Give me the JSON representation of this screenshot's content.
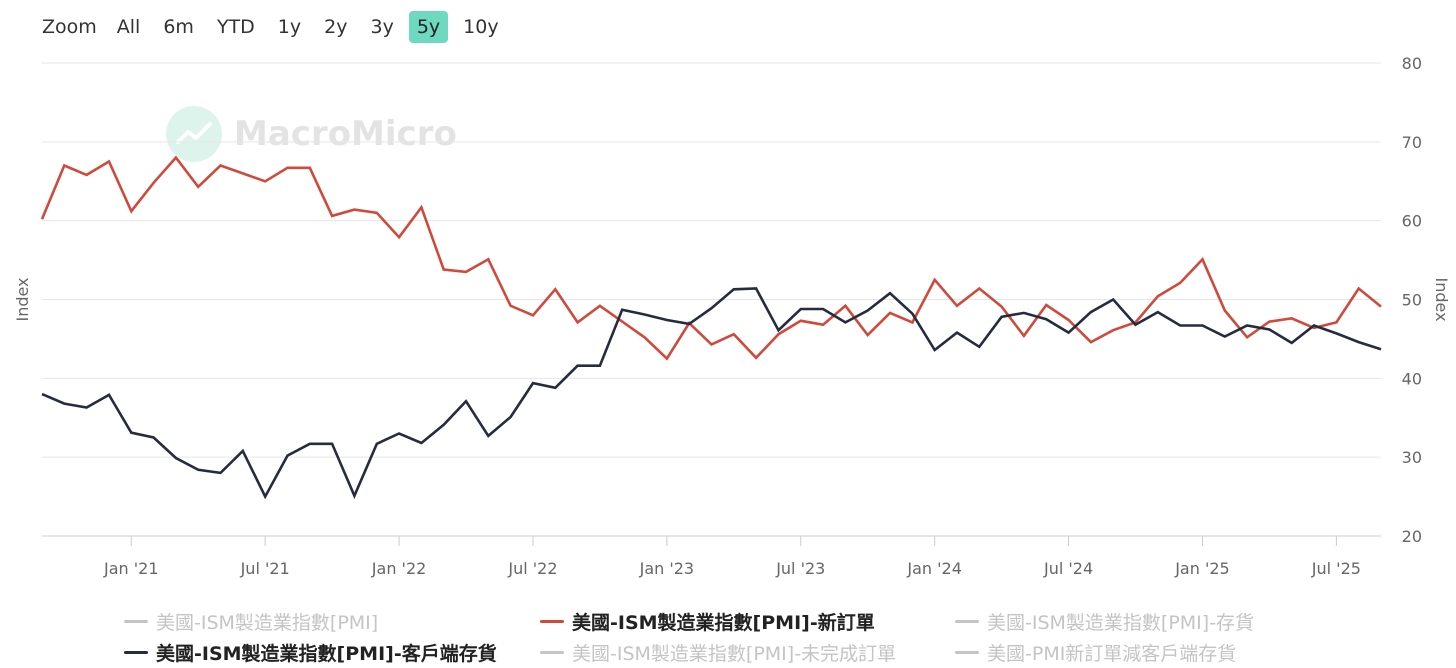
{
  "zoom": {
    "label": "Zoom",
    "buttons": [
      {
        "label": "All",
        "active": false
      },
      {
        "label": "6m",
        "active": false
      },
      {
        "label": "YTD",
        "active": false
      },
      {
        "label": "1y",
        "active": false
      },
      {
        "label": "2y",
        "active": false
      },
      {
        "label": "3y",
        "active": false
      },
      {
        "label": "5y",
        "active": true
      },
      {
        "label": "10y",
        "active": false
      }
    ],
    "active_color": "#6fd9bf"
  },
  "watermark": {
    "text": "MacroMicro",
    "icon": "macromicro-logo-icon"
  },
  "legend": [
    {
      "label": "美國-ISM製造業指數[PMI]",
      "visible": false,
      "color": "#c4c4c4"
    },
    {
      "label": "美國-ISM製造業指數[PMI]-新訂單",
      "visible": true,
      "color": "#d04a3c"
    },
    {
      "label": "美國-ISM製造業指數[PMI]-存貨",
      "visible": false,
      "color": "#c4c4c4"
    },
    {
      "label": "美國-ISM製造業指數[PMI]-客戶端存貨",
      "visible": true,
      "color": "#252c3e"
    },
    {
      "label": "美國-ISM製造業指數[PMI]-未完成訂單",
      "visible": false,
      "color": "#c4c4c4"
    },
    {
      "label": "美國-PMI新訂單減客戶端存貨",
      "visible": false,
      "color": "#c4c4c4"
    }
  ],
  "chart_data": {
    "type": "line",
    "ylabel_left": "Index",
    "ylabel_right": "Index",
    "ylim": [
      20,
      80
    ],
    "yticks": [
      20,
      30,
      40,
      50,
      60,
      70,
      80
    ],
    "x_start": "2020-09",
    "x_ticks": [
      {
        "label": "Jan '21",
        "date": "2021-01"
      },
      {
        "label": "Jul '21",
        "date": "2021-07"
      },
      {
        "label": "Jan '22",
        "date": "2022-01"
      },
      {
        "label": "Jul '22",
        "date": "2022-07"
      },
      {
        "label": "Jan '23",
        "date": "2023-01"
      },
      {
        "label": "Jul '23",
        "date": "2023-07"
      },
      {
        "label": "Jan '24",
        "date": "2024-01"
      },
      {
        "label": "Jul '24",
        "date": "2024-07"
      },
      {
        "label": "Jan '25",
        "date": "2025-01"
      },
      {
        "label": "Jul '25",
        "date": "2025-07"
      }
    ],
    "grid": true,
    "series": [
      {
        "name": "美國-ISM製造業指數[PMI]-新訂單",
        "color": "#d04a3c",
        "values": [
          60.2,
          67.0,
          65.8,
          67.5,
          61.2,
          64.8,
          68.0,
          64.3,
          67.0,
          66.0,
          65.0,
          66.7,
          66.7,
          60.6,
          61.4,
          61.0,
          57.9,
          61.7,
          53.8,
          53.5,
          55.1,
          49.2,
          48.0,
          51.3,
          47.1,
          49.2,
          47.2,
          45.2,
          42.5,
          47.0,
          44.3,
          45.6,
          42.6,
          45.6,
          47.3,
          46.8,
          49.2,
          45.5,
          48.3,
          47.1,
          52.5,
          49.2,
          51.4,
          49.1,
          45.4,
          49.3,
          47.4,
          44.6,
          46.1,
          47.1,
          50.4,
          52.1,
          55.1,
          48.6,
          45.2,
          47.2,
          47.6,
          46.4,
          47.1,
          51.4,
          49.1
        ]
      },
      {
        "name": "美國-ISM製造業指數[PMI]-客戶端存貨",
        "color": "#252c3e",
        "values": [
          38.0,
          36.8,
          36.3,
          37.9,
          33.1,
          32.5,
          29.9,
          28.4,
          28.0,
          30.8,
          25.0,
          30.2,
          31.7,
          31.7,
          25.1,
          31.7,
          33.0,
          31.8,
          34.1,
          37.1,
          32.7,
          35.1,
          39.4,
          38.8,
          41.6,
          41.6,
          48.7,
          48.1,
          47.4,
          46.9,
          48.9,
          51.3,
          51.4,
          46.1,
          48.8,
          48.8,
          47.1,
          48.6,
          50.8,
          48.2,
          43.6,
          45.8,
          44.0,
          47.8,
          48.3,
          47.5,
          45.8,
          48.4,
          50.0,
          46.8,
          48.4,
          46.7,
          46.7,
          45.3,
          46.7,
          46.2,
          44.5,
          46.7,
          45.7,
          44.6,
          43.7
        ]
      }
    ]
  }
}
